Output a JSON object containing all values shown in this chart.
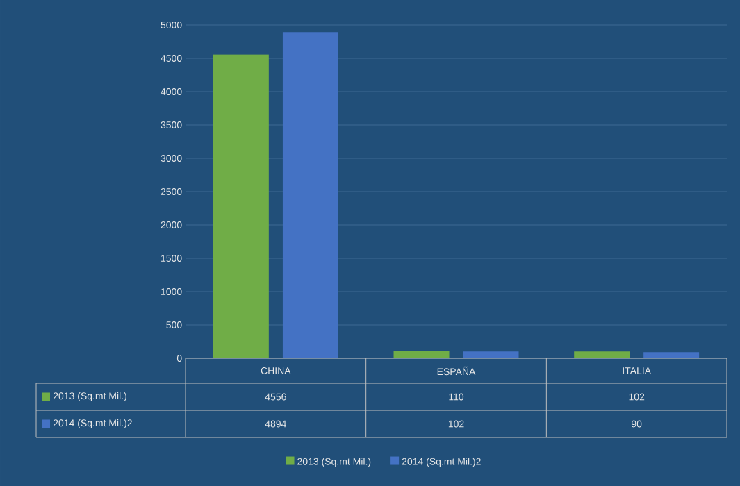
{
  "chart_data": {
    "type": "bar",
    "categories": [
      "CHINA",
      "ESPAÑA",
      "ITALIA"
    ],
    "series": [
      {
        "name": "2013 (Sq.mt Mil.)",
        "color": "#70ad47",
        "values": [
          4556,
          110,
          102
        ]
      },
      {
        "name": "2014 (Sq.mt Mil.)2",
        "color": "#4472c4",
        "values": [
          4894,
          102,
          90
        ]
      }
    ],
    "ylim": [
      0,
      5000
    ],
    "yticks": [
      0,
      500,
      1000,
      1500,
      2000,
      2500,
      3000,
      3500,
      4000,
      4500,
      5000
    ],
    "grid": "y",
    "legend": "bottom",
    "data_labels": true
  }
}
